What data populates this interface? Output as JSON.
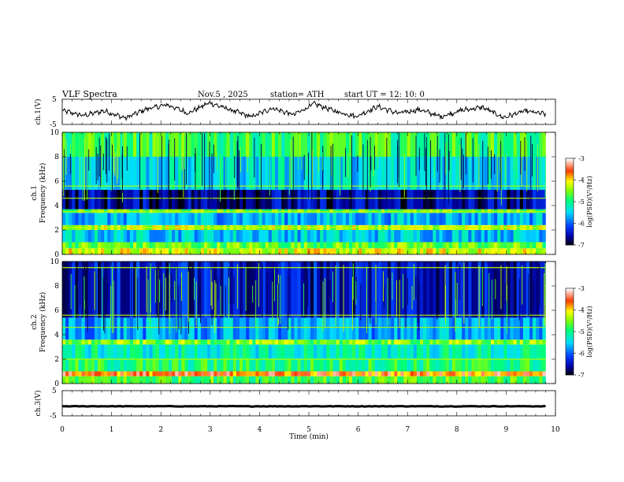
{
  "header": {
    "title": "VLF  Spectra",
    "date": "Nov.5  , 2025",
    "station": "station= ATH",
    "start_ut": "start  UT  =    12: 10: 0"
  },
  "chart_data": [
    {
      "type": "line",
      "panel": "ch1-waveform",
      "ylabel": "ch.1(V)",
      "ylim": [
        -5,
        5
      ],
      "y_tick_labels": [
        "5",
        "-5"
      ],
      "xlim": [
        0,
        10
      ],
      "series_x_range": [
        0,
        9.8
      ],
      "profile": [
        0.5,
        -1.5,
        0.4,
        -2.5,
        1.1,
        2.8,
        -0.5,
        3.6,
        0.8,
        -2.0,
        1.5,
        -1.2,
        3.2,
        0.2,
        -1.8,
        2.1,
        -0.6,
        0.9,
        -1.9,
        0.6,
        1.8,
        -2.3,
        0.3,
        -0.9
      ]
    },
    {
      "type": "heatmap",
      "panel": "ch1-spectrogram",
      "ylabel": "ch.1\nFrequency  (kHz)",
      "xlim": [
        0,
        10
      ],
      "ylim": [
        0,
        10
      ],
      "y_ticks": [
        "0",
        "2",
        "4",
        "6",
        "8",
        "10"
      ],
      "data_x_range": [
        0,
        9.8
      ],
      "colorbar": {
        "label": "log(PSD)(V²/Hz)",
        "range": [
          -7,
          -3
        ],
        "ticks": [
          "-3",
          "-4",
          "-5",
          "-6",
          "-7"
        ]
      },
      "bands": [
        {
          "f": [
            0,
            0.5
          ],
          "level": -4.2
        },
        {
          "f": [
            0.5,
            1.0
          ],
          "level": -4.6
        },
        {
          "f": [
            1.0,
            2.0
          ],
          "level": -5.5
        },
        {
          "f": [
            2.0,
            2.4
          ],
          "level": -4.3
        },
        {
          "f": [
            2.4,
            3.4
          ],
          "level": -5.6
        },
        {
          "f": [
            3.4,
            3.7
          ],
          "level": -4.6
        },
        {
          "f": [
            3.7,
            5.3
          ],
          "level": -6.6
        },
        {
          "f": [
            5.3,
            8.0
          ],
          "level": -5.4
        },
        {
          "f": [
            8.0,
            10.0
          ],
          "level": -4.8
        }
      ],
      "tones_khz": [
        2.2,
        3.5,
        4.6,
        5.6
      ]
    },
    {
      "type": "heatmap",
      "panel": "ch2-spectrogram",
      "ylabel": "ch.2\nFrequency  (kHz)",
      "xlim": [
        0,
        10
      ],
      "ylim": [
        0,
        10
      ],
      "y_ticks": [
        "0",
        "2",
        "4",
        "6",
        "8",
        "10"
      ],
      "data_x_range": [
        0,
        9.8
      ],
      "colorbar": {
        "label": "log(PSD)(V²/Hz)",
        "range": [
          -7,
          -3
        ],
        "ticks": [
          "-3",
          "-4",
          "-5",
          "-6",
          "-7"
        ]
      },
      "bands": [
        {
          "f": [
            0,
            0.6
          ],
          "level": -4.7
        },
        {
          "f": [
            0.6,
            1.0
          ],
          "level": -3.6
        },
        {
          "f": [
            1.0,
            2.0
          ],
          "level": -4.9
        },
        {
          "f": [
            2.0,
            3.2
          ],
          "level": -5.2
        },
        {
          "f": [
            3.2,
            3.6
          ],
          "level": -4.5
        },
        {
          "f": [
            3.6,
            5.4
          ],
          "level": -5.7
        },
        {
          "f": [
            5.4,
            10.0
          ],
          "level": -6.4
        }
      ],
      "tones_khz": [
        2.0,
        4.6,
        5.6,
        9.5
      ]
    },
    {
      "type": "line",
      "panel": "ch3-waveform",
      "ylabel": "ch.3(V)",
      "ylim": [
        -5,
        5
      ],
      "y_tick_labels": [
        "5",
        "-5"
      ],
      "xlim": [
        0,
        10
      ],
      "series_x_range": [
        0,
        9.8
      ],
      "constant_value": -1.2
    }
  ],
  "x_axis": {
    "label": "Time  (min)",
    "ticks": [
      "0",
      "1",
      "2",
      "3",
      "4",
      "5",
      "6",
      "7",
      "8",
      "9",
      "10"
    ]
  },
  "colors": {
    "colormap": [
      "#000000",
      "#0000ff",
      "#00ffff",
      "#00ff00",
      "#ffff00",
      "#ff0000",
      "#ffffff"
    ]
  }
}
